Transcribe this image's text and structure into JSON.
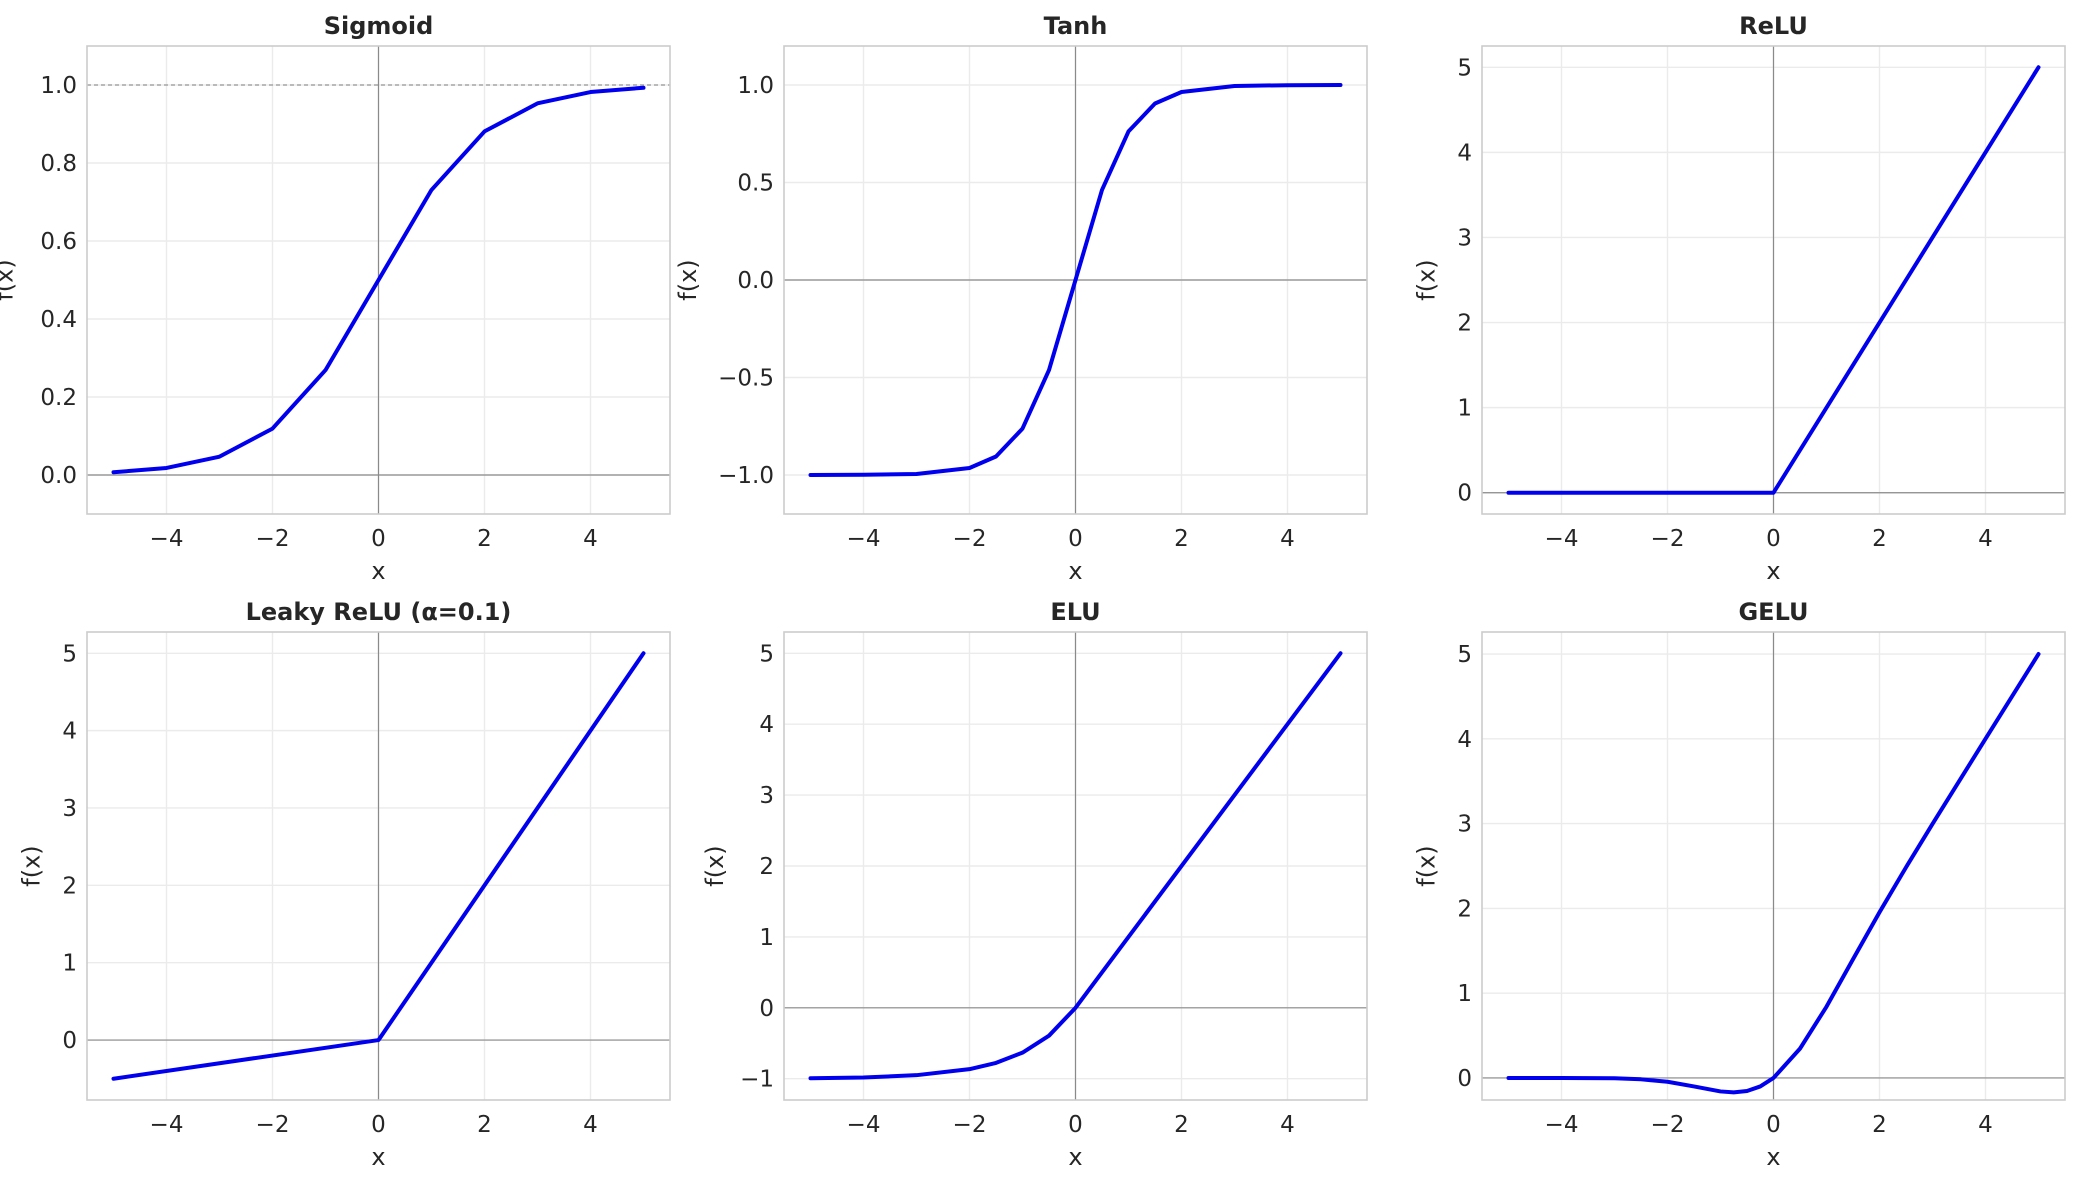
{
  "chart_data": [
    {
      "type": "line",
      "title": "Sigmoid",
      "xlabel": "x",
      "ylabel": "f(x)",
      "xlim": [
        -5.5,
        5.5
      ],
      "ylim": [
        -0.1,
        1.1
      ],
      "xticks": [
        -4,
        -2,
        0,
        2,
        4
      ],
      "yticks": [
        0.0,
        0.2,
        0.4,
        0.6,
        0.8,
        1.0
      ],
      "xticklabels": [
        "−4",
        "−2",
        "0",
        "2",
        "4"
      ],
      "yticklabels": [
        "0.0",
        "0.2",
        "0.4",
        "0.6",
        "0.8",
        "1.0"
      ],
      "grid": true,
      "reference_lines": [
        {
          "y": 1.0,
          "style": "dashed"
        }
      ],
      "series": [
        {
          "color": "#0000ee",
          "x": [
            -5,
            -4,
            -3,
            -2,
            -1,
            0,
            1,
            2,
            3,
            4,
            5
          ],
          "y": [
            0.007,
            0.018,
            0.047,
            0.119,
            0.269,
            0.5,
            0.731,
            0.881,
            0.953,
            0.982,
            0.993
          ]
        }
      ]
    },
    {
      "type": "line",
      "title": "Tanh",
      "xlabel": "x",
      "ylabel": "f(x)",
      "xlim": [
        -5.5,
        5.5
      ],
      "ylim": [
        -1.2,
        1.2
      ],
      "xticks": [
        -4,
        -2,
        0,
        2,
        4
      ],
      "yticks": [
        -1.0,
        -0.5,
        0.0,
        0.5,
        1.0
      ],
      "xticklabels": [
        "−4",
        "−2",
        "0",
        "2",
        "4"
      ],
      "yticklabels": [
        "−1.0",
        "−0.5",
        "0.0",
        "0.5",
        "1.0"
      ],
      "grid": true,
      "series": [
        {
          "color": "#0000ee",
          "x": [
            -5,
            -4,
            -3,
            -2,
            -1.5,
            -1,
            -0.5,
            0,
            0.5,
            1,
            1.5,
            2,
            3,
            4,
            5
          ],
          "y": [
            -1.0,
            -0.999,
            -0.995,
            -0.964,
            -0.905,
            -0.762,
            -0.462,
            0.0,
            0.462,
            0.762,
            0.905,
            0.964,
            0.995,
            0.999,
            1.0
          ]
        }
      ]
    },
    {
      "type": "line",
      "title": "ReLU",
      "xlabel": "x",
      "ylabel": "f(x)",
      "xlim": [
        -5.5,
        5.5
      ],
      "ylim": [
        -0.25,
        5.25
      ],
      "xticks": [
        -4,
        -2,
        0,
        2,
        4
      ],
      "yticks": [
        0,
        1,
        2,
        3,
        4,
        5
      ],
      "xticklabels": [
        "−4",
        "−2",
        "0",
        "2",
        "4"
      ],
      "yticklabels": [
        "0",
        "1",
        "2",
        "3",
        "4",
        "5"
      ],
      "grid": true,
      "series": [
        {
          "color": "#0000ee",
          "x": [
            -5,
            0,
            5
          ],
          "y": [
            0,
            0,
            5
          ]
        }
      ]
    },
    {
      "type": "line",
      "title": "Leaky ReLU (α=0.1)",
      "xlabel": "x",
      "ylabel": "f(x)",
      "xlim": [
        -5.5,
        5.5
      ],
      "ylim": [
        -0.775,
        5.275
      ],
      "xticks": [
        -4,
        -2,
        0,
        2,
        4
      ],
      "yticks": [
        0,
        1,
        2,
        3,
        4,
        5
      ],
      "xticklabels": [
        "−4",
        "−2",
        "0",
        "2",
        "4"
      ],
      "yticklabels": [
        "0",
        "1",
        "2",
        "3",
        "4",
        "5"
      ],
      "grid": true,
      "series": [
        {
          "color": "#0000ee",
          "x": [
            -5,
            0,
            5
          ],
          "y": [
            -0.5,
            0,
            5
          ]
        }
      ]
    },
    {
      "type": "line",
      "title": "ELU",
      "xlabel": "x",
      "ylabel": "f(x)",
      "xlim": [
        -5.5,
        5.5
      ],
      "ylim": [
        -1.3,
        5.3
      ],
      "xticks": [
        -4,
        -2,
        0,
        2,
        4
      ],
      "yticks": [
        -1,
        0,
        1,
        2,
        3,
        4,
        5
      ],
      "xticklabels": [
        "−4",
        "−2",
        "0",
        "2",
        "4"
      ],
      "yticklabels": [
        "−1",
        "0",
        "1",
        "2",
        "3",
        "4",
        "5"
      ],
      "grid": true,
      "series": [
        {
          "color": "#0000ee",
          "x": [
            -5,
            -4,
            -3,
            -2,
            -1.5,
            -1,
            -0.5,
            0,
            5
          ],
          "y": [
            -0.993,
            -0.982,
            -0.95,
            -0.865,
            -0.777,
            -0.632,
            -0.393,
            0,
            5
          ]
        }
      ]
    },
    {
      "type": "line",
      "title": "GELU",
      "xlabel": "x",
      "ylabel": "f(x)",
      "xlim": [
        -5.5,
        5.5
      ],
      "ylim": [
        -0.26,
        5.26
      ],
      "xticks": [
        -4,
        -2,
        0,
        2,
        4
      ],
      "yticks": [
        0,
        1,
        2,
        3,
        4,
        5
      ],
      "xticklabels": [
        "−4",
        "−2",
        "0",
        "2",
        "4"
      ],
      "yticklabels": [
        "0",
        "1",
        "2",
        "3",
        "4",
        "5"
      ],
      "grid": true,
      "series": [
        {
          "color": "#0000ee",
          "x": [
            -5,
            -4,
            -3,
            -2.5,
            -2,
            -1.5,
            -1,
            -0.75,
            -0.5,
            -0.25,
            0,
            0.5,
            1,
            1.5,
            2,
            2.5,
            3,
            4,
            5
          ],
          "y": [
            0.0,
            -0.0001,
            -0.004,
            -0.016,
            -0.045,
            -0.1,
            -0.159,
            -0.17,
            -0.154,
            -0.1,
            0.0,
            0.346,
            0.841,
            1.4,
            1.955,
            2.484,
            2.996,
            4.0,
            5.0
          ]
        }
      ]
    }
  ]
}
